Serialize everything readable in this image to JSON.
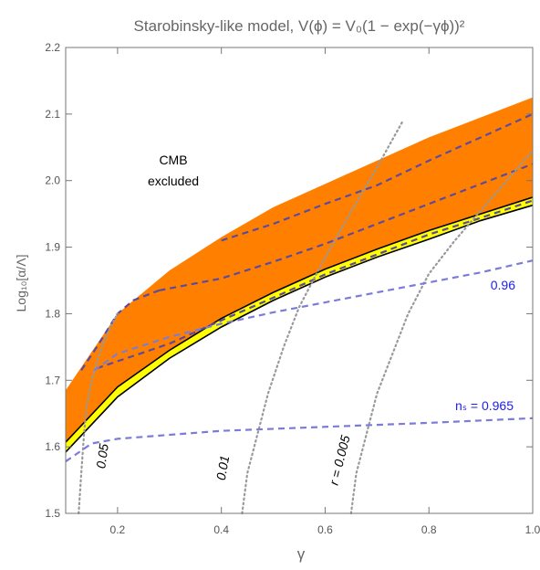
{
  "chart_data": {
    "type": "area",
    "title": "Starobinsky-like model, V(ϕ) = V₀(1 − exp(−γϕ))²",
    "xlabel": "γ",
    "ylabel": "Log₁₀[α/Λ]",
    "xlim": [
      0.1,
      1.0
    ],
    "ylim": [
      1.5,
      2.2
    ],
    "xticks": [
      0.2,
      0.4,
      0.6,
      0.8,
      1.0
    ],
    "xtick_labels": [
      "0.2",
      "0.4",
      "0.6",
      "0.8",
      "1.0"
    ],
    "yticks": [
      1.5,
      1.6,
      1.7,
      1.8,
      1.9,
      2.0,
      2.1,
      2.2
    ],
    "ytick_labels": [
      "1.5",
      "1.6",
      "1.7",
      "1.8",
      "1.9",
      "2.0",
      "2.1",
      "2.2"
    ],
    "grid": false,
    "colors": {
      "allowed_band": "#ff8000",
      "yellow_band": "#ffff00",
      "ns_contours": "#7b7bd8",
      "band_contours": "#5a4ba0",
      "r_contours": "#999999"
    },
    "region_label": [
      "CMB",
      "excluded"
    ],
    "series": [
      {
        "name": "orange band upper edge",
        "x": [
          0.1,
          0.2,
          0.3,
          0.4,
          0.5,
          0.6,
          0.7,
          0.8,
          0.9,
          1.0
        ],
        "y": [
          1.685,
          1.8,
          1.865,
          1.915,
          1.96,
          1.995,
          2.03,
          2.065,
          2.095,
          2.125
        ]
      },
      {
        "name": "orange band lower edge",
        "x": [
          0.1,
          0.2,
          0.3,
          0.4,
          0.5,
          0.6,
          0.7,
          0.8,
          0.9,
          1.0
        ],
        "y": [
          1.607,
          1.69,
          1.745,
          1.793,
          1.832,
          1.867,
          1.897,
          1.925,
          1.95,
          1.975
        ]
      },
      {
        "name": "yellow band lower edge",
        "x": [
          0.1,
          0.2,
          0.3,
          0.4,
          0.5,
          0.6,
          0.7,
          0.8,
          0.9,
          1.0
        ],
        "y": [
          1.592,
          1.675,
          1.733,
          1.78,
          1.82,
          1.855,
          1.885,
          1.912,
          1.94,
          1.963
        ]
      }
    ],
    "ns_contours": [
      {
        "label": "nₛ = 0.965",
        "x": [
          0.1,
          0.15,
          0.2,
          0.4,
          0.6,
          0.8,
          1.0
        ],
        "y": [
          1.578,
          1.605,
          1.612,
          1.624,
          1.63,
          1.636,
          1.643
        ]
      },
      {
        "label": "0.96",
        "x": [
          0.155,
          0.2,
          0.3,
          0.4,
          0.5,
          0.6,
          0.7,
          0.8,
          0.9,
          1.0
        ],
        "y": [
          1.715,
          1.74,
          1.765,
          1.785,
          1.802,
          1.817,
          1.832,
          1.847,
          1.862,
          1.88
        ]
      }
    ],
    "band_contours": [
      {
        "x": [
          0.16,
          0.3,
          0.4,
          0.5,
          0.6,
          0.7,
          0.8,
          0.9,
          1.0
        ],
        "y": [
          1.718,
          1.755,
          1.79,
          1.824,
          1.859,
          1.889,
          1.919,
          1.944,
          1.97
        ]
      },
      {
        "x": [
          0.28,
          0.4,
          0.5,
          0.6,
          0.7,
          0.8,
          0.9,
          1.0
        ],
        "y": [
          1.835,
          1.853,
          1.878,
          1.905,
          1.935,
          1.965,
          1.995,
          2.025
        ]
      },
      {
        "x": [
          0.4,
          0.5,
          0.6,
          0.7,
          0.8,
          0.9,
          1.0
        ],
        "y": [
          1.91,
          1.935,
          1.965,
          1.993,
          2.03,
          2.065,
          2.1
        ]
      },
      {
        "x": [
          0.13,
          0.16,
          0.2,
          0.23,
          0.28
        ],
        "y": [
          1.715,
          1.75,
          1.8,
          1.82,
          1.835
        ]
      }
    ],
    "r_contours": [
      {
        "label": "0.05",
        "x": [
          0.125,
          0.13,
          0.135,
          0.14,
          0.15,
          0.165,
          0.18,
          0.2
        ],
        "y": [
          1.5,
          1.56,
          1.615,
          1.66,
          1.7,
          1.74,
          1.77,
          1.8
        ]
      },
      {
        "label": "0.01",
        "x": [
          0.44,
          0.45,
          0.47,
          0.49,
          0.52,
          0.55,
          0.59,
          0.64,
          0.7,
          0.75
        ],
        "y": [
          1.5,
          1.56,
          1.62,
          1.68,
          1.75,
          1.81,
          1.87,
          1.94,
          2.02,
          2.09
        ]
      },
      {
        "label": "r = 0.005",
        "x": [
          0.65,
          0.66,
          0.68,
          0.7,
          0.73,
          0.76,
          0.8,
          0.85,
          0.9,
          0.95,
          1.0
        ],
        "y": [
          1.5,
          1.56,
          1.62,
          1.68,
          1.74,
          1.8,
          1.86,
          1.91,
          1.955,
          2.0,
          2.045
        ]
      }
    ]
  }
}
